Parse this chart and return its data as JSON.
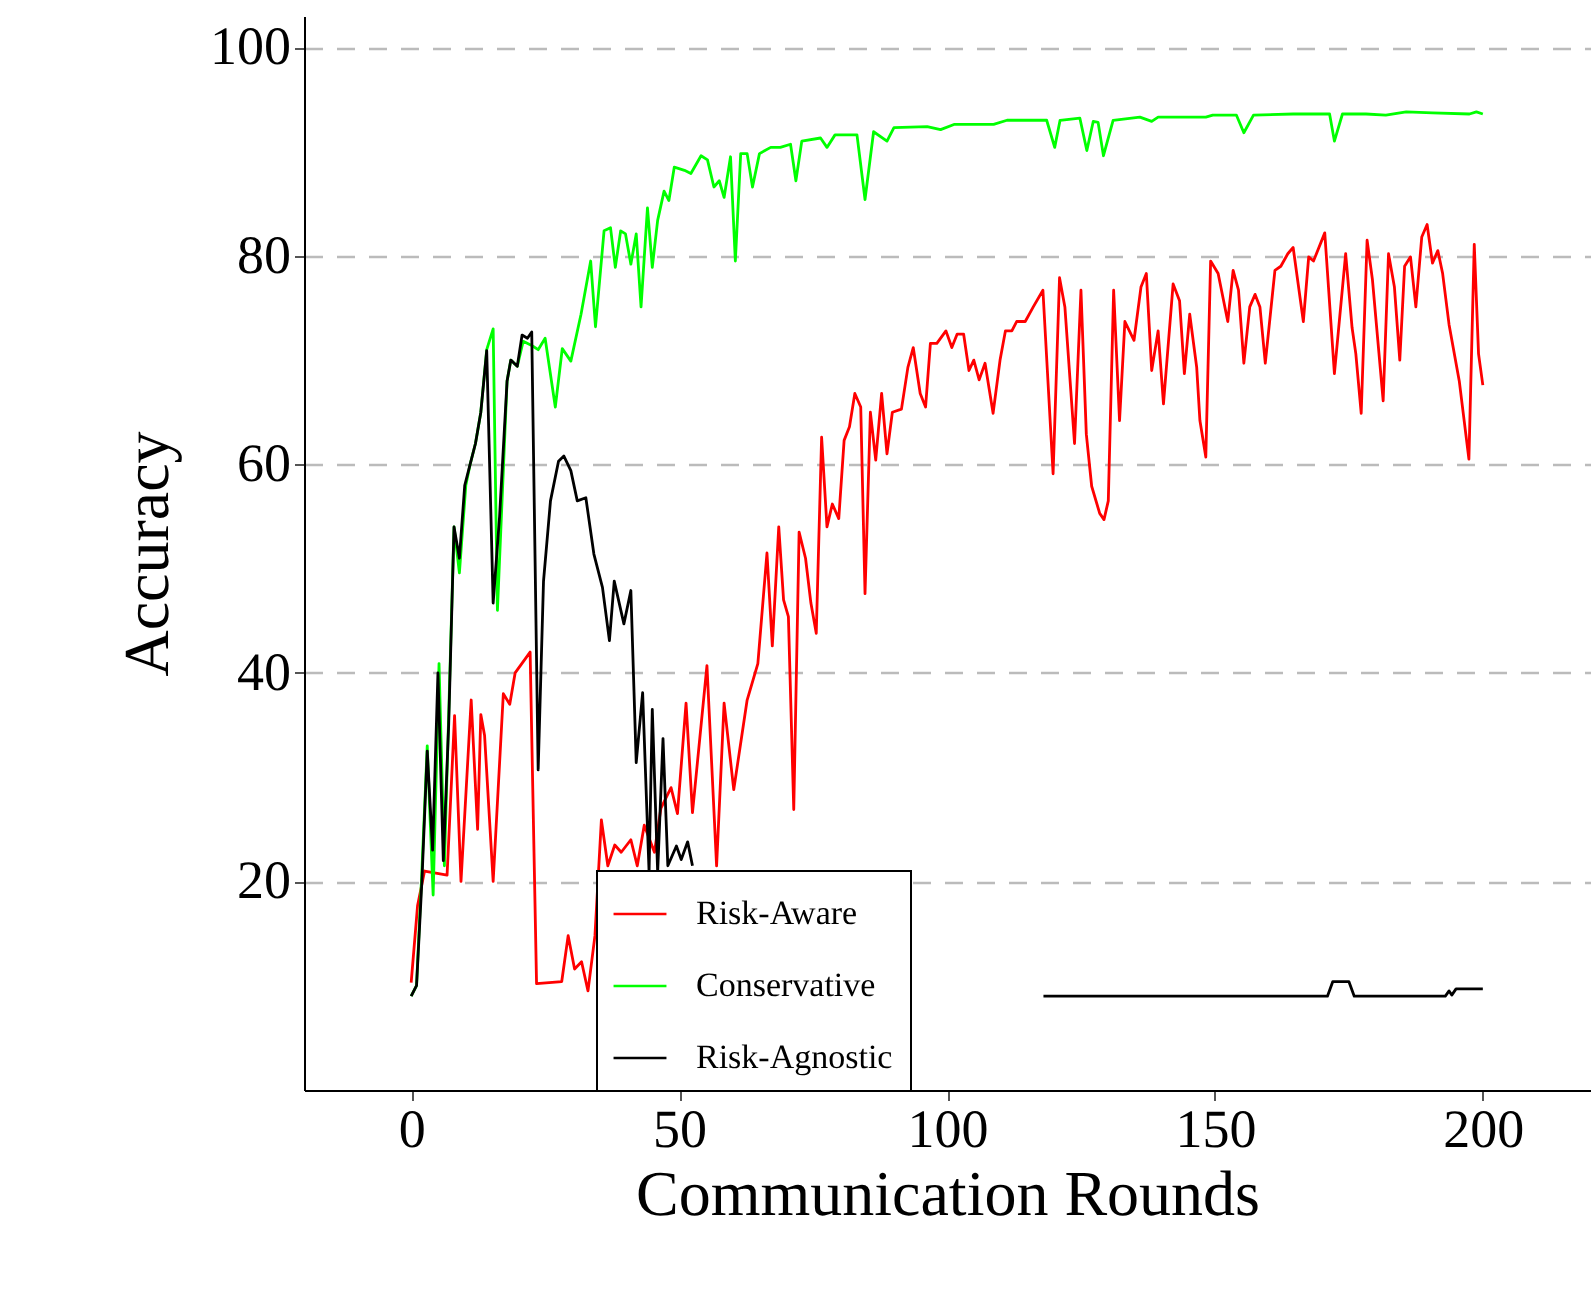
{
  "chart_data": {
    "type": "line",
    "xlabel": "Communication Rounds",
    "ylabel": "Accuracy",
    "xlim": [
      -20,
      220
    ],
    "ylim": [
      0,
      103
    ],
    "xticks": [
      0,
      50,
      100,
      150,
      200
    ],
    "yticks": [
      20,
      40,
      60,
      80,
      100
    ],
    "grid": "y",
    "legend": "bottom",
    "line_style": "solid",
    "marker": "none",
    "series": [
      {
        "name": "Risk-Aware",
        "color": "#ff0000",
        "x": [
          0,
          1.2,
          2.5,
          6.7,
          8.1,
          9.3,
          11.2,
          12.4,
          13,
          13.7,
          15.3,
          17.2,
          18.4,
          19.4,
          22.2,
          23.4,
          28.1,
          29.3,
          30.5,
          31.8,
          33,
          34.3,
          35.5,
          36.7,
          38,
          39.2,
          41,
          42.2,
          43.5,
          45.4,
          46.6,
          48.5,
          49.7,
          51.3,
          52.5,
          55.2,
          57,
          58.4,
          60.2,
          62.7,
          64.7,
          66.4,
          67.4,
          68.6,
          69.5,
          70.4,
          71.4,
          72.4,
          73.6,
          74.6,
          75.6,
          76.6,
          77.6,
          78.6,
          79.8,
          80.8,
          81.8,
          82.8,
          83.9,
          84.7,
          85.7,
          86.7,
          87.8,
          88.8,
          89.8,
          91.5,
          92.7,
          93.7,
          95,
          96,
          96.9,
          98.1,
          99.8,
          100.9,
          101.9,
          103.1,
          104.1,
          105,
          106,
          107.1,
          108.6,
          109.9,
          110.9,
          112.1,
          113,
          114.6,
          116.1,
          117.9,
          119.8,
          121,
          122,
          123.8,
          125,
          126,
          127,
          128.5,
          129.3,
          130.1,
          131.1,
          132.2,
          133.2,
          134.9,
          136.2,
          137.2,
          138.2,
          139.4,
          140.4,
          142.2,
          143.4,
          144.3,
          145.3,
          146.6,
          147.2,
          148.3,
          149.2,
          150.6,
          152.4,
          153.4,
          154.4,
          155.4,
          156.5,
          157.5,
          158.4,
          159.4,
          161.2,
          162.3,
          163.6,
          164.6,
          166.5,
          167.5,
          168.4,
          170.5,
          172.3,
          174.4,
          175.6,
          176.3,
          177.3,
          178.4,
          179.4,
          181.4,
          182.4,
          183.5,
          184.5,
          185.4,
          186.5,
          187.5,
          188.6,
          189.6,
          190.6,
          191.6,
          192.5,
          193.7,
          195.6,
          197.4,
          198.4,
          199.2,
          200
        ],
        "values": [
          10.3,
          17.7,
          21,
          20.6,
          35.9,
          20,
          37.4,
          25,
          36,
          34,
          20,
          38,
          37,
          40,
          42,
          10.2,
          10.4,
          14.8,
          11.6,
          12.3,
          9.5,
          14.8,
          25.9,
          21.5,
          23.5,
          22.8,
          24,
          21.5,
          25.4,
          22.8,
          27,
          29,
          26.5,
          37.1,
          26.6,
          40.7,
          21.5,
          37.1,
          28.8,
          37.4,
          40.9,
          51.5,
          42.6,
          54,
          47,
          45.4,
          26.9,
          53.5,
          51,
          46.7,
          43.8,
          62.6,
          54,
          56.2,
          54.8,
          62.3,
          63.6,
          66.8,
          65.5,
          47.6,
          65,
          60.4,
          66.8,
          61,
          65,
          65.3,
          69.3,
          71.2,
          66.8,
          65.5,
          71.6,
          71.6,
          72.8,
          71.2,
          72.5,
          72.5,
          69,
          70,
          68.1,
          69.7,
          64.9,
          70,
          72.8,
          72.8,
          73.7,
          73.7,
          75.1,
          76.7,
          59.1,
          77.9,
          75.1,
          62,
          76.7,
          62.9,
          57.9,
          55.3,
          54.7,
          56.5,
          76.7,
          64.2,
          73.7,
          71.9,
          77,
          78.3,
          69,
          72.8,
          65.8,
          77.3,
          75.7,
          68.7,
          74.4,
          69.3,
          64.2,
          60.7,
          79.5,
          78.3,
          73.7,
          78.6,
          76.7,
          69.7,
          75.1,
          76.3,
          75.1,
          69.7,
          78.6,
          79,
          80.2,
          80.8,
          73.7,
          79.9,
          79.5,
          82.2,
          68.7,
          80.2,
          73.1,
          70.6,
          64.9,
          81.5,
          77.7,
          66.1,
          80.2,
          77,
          70,
          79,
          79.9,
          75.1,
          81.8,
          83,
          79.3,
          80.5,
          78.3,
          73.4,
          68,
          60.5,
          81.1,
          70.6,
          67.6
        ]
      },
      {
        "name": "Conservative",
        "color": "#00ff00",
        "x": [
          0,
          1,
          2,
          3,
          4.1,
          5.2,
          6.2,
          8,
          9,
          10.2,
          11,
          12,
          13,
          14.1,
          15.3,
          16.1,
          17.9,
          18.6,
          19.8,
          20.9,
          22.5,
          23.7,
          25,
          26.9,
          28.2,
          29.8,
          31.7,
          33.5,
          34.4,
          36,
          37.2,
          38.1,
          39.1,
          40,
          41,
          42,
          42.9,
          44.1,
          45,
          46,
          47.2,
          48.1,
          49.1,
          51,
          52.2,
          54.1,
          55.3,
          56.5,
          57.5,
          58.4,
          59.6,
          60.5,
          61.5,
          62.7,
          63.7,
          65,
          67.1,
          68.9,
          70.8,
          71.8,
          72.9,
          76.4,
          77.6,
          79.1,
          83.2,
          84.7,
          86.3,
          88.8,
          90.1,
          96.3,
          98.8,
          101.3,
          108.7,
          111.2,
          118.6,
          120.1,
          121.1,
          124.8,
          126.1,
          127.3,
          128.2,
          129.2,
          131,
          136,
          138.2,
          139.4,
          148.3,
          149.6,
          154,
          155.4,
          157.2,
          164.6,
          171.4,
          172.3,
          173.8,
          178.2,
          181.9,
          185.7,
          190.6,
          197.5,
          198.8,
          200
        ],
        "values": [
          9,
          10,
          21,
          33,
          18.7,
          40.9,
          21.5,
          54,
          49.6,
          58,
          60,
          62,
          65,
          71,
          73,
          46,
          68,
          70,
          69.4,
          71.8,
          71.4,
          71,
          72.1,
          65.5,
          71.1,
          69.9,
          74.4,
          79.5,
          73.2,
          82.4,
          82.7,
          78.9,
          82.4,
          82.1,
          79.2,
          82.1,
          75.1,
          84.6,
          78.9,
          83.4,
          86.2,
          85.3,
          88.5,
          88.2,
          87.9,
          89.6,
          89.2,
          86.6,
          87.2,
          85.6,
          89.5,
          79.5,
          89.8,
          89.8,
          86.6,
          89.8,
          90.4,
          90.4,
          90.7,
          87.2,
          91,
          91.3,
          90.4,
          91.6,
          91.6,
          85.4,
          91.9,
          91,
          92.3,
          92.4,
          92.1,
          92.6,
          92.6,
          93,
          93,
          90.4,
          93,
          93.2,
          90.1,
          92.9,
          92.8,
          89.6,
          93,
          93.3,
          92.9,
          93.3,
          93.3,
          93.5,
          93.5,
          91.8,
          93.5,
          93.6,
          93.6,
          91,
          93.6,
          93.6,
          93.5,
          93.8,
          93.7,
          93.6,
          93.8,
          93.6
        ]
      },
      {
        "name": "Risk-Agnostic",
        "color": "#000000",
        "x": [
          0,
          1,
          2,
          3,
          4,
          5,
          6,
          7,
          8,
          9,
          10,
          11,
          12,
          13,
          14.1,
          15.3,
          16.5,
          17.9,
          18.6,
          19.8,
          20.7,
          21.7,
          22.5,
          23.7,
          24.7,
          26,
          27.5,
          28.5,
          29.8,
          31,
          32.6,
          34.1,
          35.7,
          37,
          37.9,
          39.7,
          41,
          42,
          43.2,
          44.4,
          45,
          46,
          47,
          47.9,
          49.5,
          50.4,
          51.6,
          52.5,
          53,
          118,
          171,
          172,
          175,
          176,
          193,
          193.7,
          194.2,
          195,
          200
        ],
        "values": [
          9,
          10,
          20,
          32.5,
          23,
          40,
          22,
          35,
          54,
          51,
          58,
          60,
          62,
          65,
          70.9,
          46.7,
          55,
          68,
          70,
          69.4,
          72.4,
          72.1,
          72.7,
          30.7,
          48.8,
          56.5,
          60.3,
          60.8,
          59.4,
          56.5,
          56.8,
          51.4,
          48.2,
          43.1,
          48.8,
          44.7,
          47.9,
          31.4,
          38.1,
          20.9,
          36.5,
          20.9,
          33.7,
          21.5,
          23.4,
          22.1,
          23.8,
          21.5,
          null,
          9,
          9,
          10.4,
          10.4,
          9,
          9,
          9.5,
          9.1,
          9.7,
          9.7
        ]
      }
    ]
  }
}
